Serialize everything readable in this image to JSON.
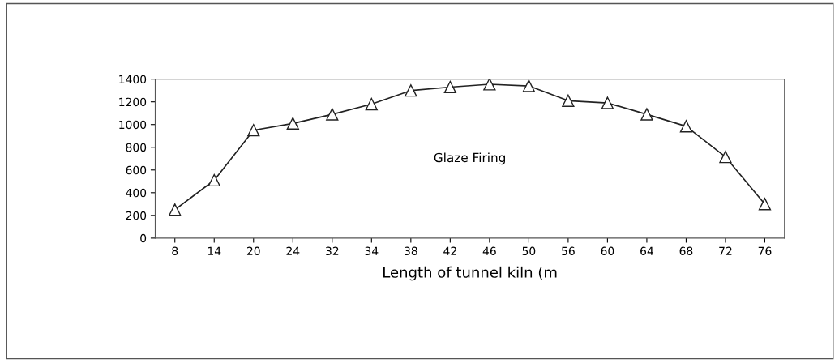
{
  "chart_data": {
    "type": "line",
    "xlabel": "Length of tunnel kiln (m",
    "annotations": [
      "Glaze Firing"
    ],
    "categories": [
      "8",
      "14",
      "20",
      "24",
      "32",
      "34",
      "38",
      "42",
      "46",
      "50",
      "56",
      "60",
      "64",
      "68",
      "72",
      "76"
    ],
    "series": [
      {
        "color": "#222222",
        "values": [
          250,
          510,
          950,
          1010,
          1090,
          1180,
          1300,
          1330,
          1355,
          1340,
          1210,
          1190,
          1090,
          985,
          715,
          300
        ]
      }
    ],
    "ylim": [
      0,
      1400
    ],
    "yticks": [
      0,
      200,
      400,
      600,
      800,
      1000,
      1200,
      1400
    ],
    "marker": "triangle",
    "line_style": "solid",
    "grid": false,
    "legend": false
  }
}
